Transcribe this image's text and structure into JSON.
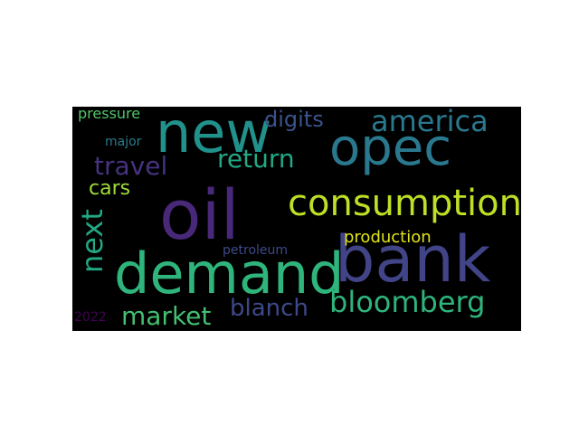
{
  "words": {
    "oil": {
      "text": "oil",
      "color": "#482878"
    },
    "bank": {
      "text": "bank",
      "color": "#414487"
    },
    "demand": {
      "text": "demand",
      "color": "#2fb47c"
    },
    "new": {
      "text": "new",
      "color": "#21918c"
    },
    "opec": {
      "text": "opec",
      "color": "#2a788e"
    },
    "consumption": {
      "text": "consumption",
      "color": "#bddf26"
    },
    "america": {
      "text": "america",
      "color": "#2a788e"
    },
    "travel": {
      "text": "travel",
      "color": "#46327e"
    },
    "return": {
      "text": "return",
      "color": "#22a884"
    },
    "digits": {
      "text": "digits",
      "color": "#3b528b"
    },
    "cars": {
      "text": "cars",
      "color": "#a0da39"
    },
    "next": {
      "text": "next",
      "color": "#22a884"
    },
    "bloomberg": {
      "text": "bloomberg",
      "color": "#2fb47c"
    },
    "market": {
      "text": "market",
      "color": "#44bf70"
    },
    "blanch": {
      "text": "blanch",
      "color": "#3e4989"
    },
    "production": {
      "text": "production",
      "color": "#dfe318"
    },
    "petroleum": {
      "text": "petroleum",
      "color": "#3e4989"
    },
    "pressure": {
      "text": "pressure",
      "color": "#52c569"
    },
    "major": {
      "text": "major",
      "color": "#287c8e"
    },
    "year2022": {
      "text": "2022",
      "color": "#440154"
    }
  },
  "background": "#000000"
}
